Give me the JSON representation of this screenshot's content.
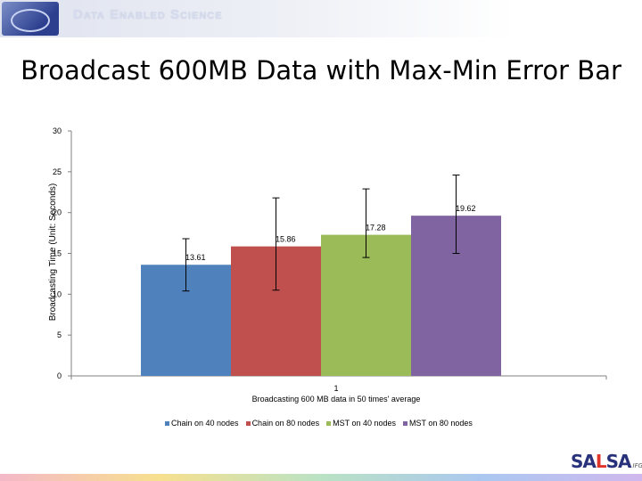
{
  "header": {
    "title": "Data Enabled Science"
  },
  "slide_title": "Broadcast 600MB Data with Max-Min Error Bar",
  "footer_logo": {
    "text_a": "SA",
    "text_b": "L",
    "text_c": "SA",
    "sub": "IFG"
  },
  "chart_data": {
    "type": "bar",
    "title": "Broadcast 600MB Data with Max-Min Error Bar",
    "ylabel": "Broadcasting Time (Unit: Seconds)",
    "xlabel": "Broadcasting 600 MB data in 50 times' average",
    "categories": [
      "1"
    ],
    "ylim": [
      0,
      30
    ],
    "yticks": [
      0,
      5,
      10,
      15,
      20,
      25,
      30
    ],
    "series": [
      {
        "name": "Chain on 40 nodes",
        "value": 13.61,
        "label": "13.61",
        "err_min": 10.4,
        "err_max": 16.8,
        "color": "#4f81bd"
      },
      {
        "name": "Chain on 80 nodes",
        "value": 15.86,
        "label": "15.86",
        "err_min": 10.5,
        "err_max": 21.8,
        "color": "#c0504d"
      },
      {
        "name": "MST on 40 nodes",
        "value": 17.28,
        "label": "17.28",
        "err_min": 14.5,
        "err_max": 22.9,
        "color": "#9bbb59"
      },
      {
        "name": "MST on 80 nodes",
        "value": 19.62,
        "label": "19.62",
        "err_min": 15.0,
        "err_max": 24.6,
        "color": "#8064a2"
      }
    ]
  }
}
